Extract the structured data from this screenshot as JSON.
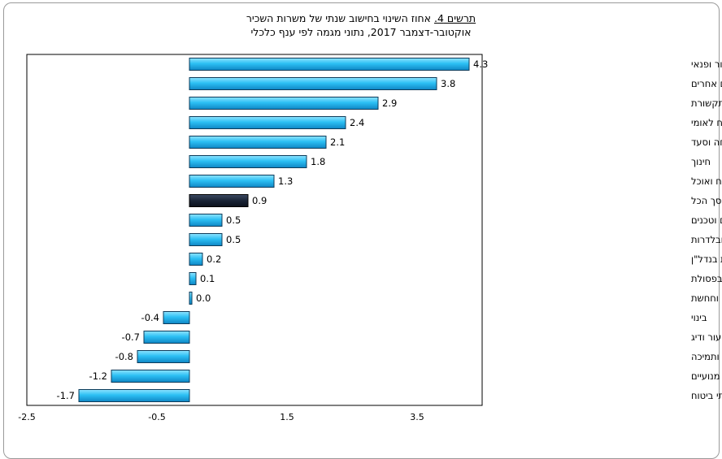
{
  "chart_data": {
    "type": "bar",
    "orientation": "horizontal",
    "title_prefix": "תרשים 4.",
    "title": "אחוז השינוי בחישוב שנתי של משרות השכיר",
    "subtitle": "אוקטובר-דצמבר 2017, נתוני מגמה לפי ענף כלכלי",
    "categories": [
      "אמנות, בידור ופנאי",
      "שירותים אחרים",
      "מידע ותקשורת",
      "מינהל מקומי, ציבורי וביטחון וביטוח לאומי",
      "שירותי בריאות, רווחה וסעד",
      "חינוך",
      "שירותי אירוח ואוכל",
      "סך הכל",
      "שירותים מקצועיים, מדעיים וטכנים",
      "שירותי תחבורה, אחסנה, דואר ובלדרות",
      "פעילויות בנדל\"ן",
      "אספקת חשמל ומים, שירותי ביוב וטיהור וטיפול בפסולת",
      "תעשייה וחחשת",
      "בינוי",
      "חקלאות, ייעור ודיג",
      "שירותי ניהול ותמיכה",
      "מסחר סיטוני וקמעוני ותיקון כלי רכב מנועיים",
      "שירותים פיננסיים ושירותי ביטוח"
    ],
    "values": [
      4.3,
      3.8,
      2.9,
      2.4,
      2.1,
      1.8,
      1.3,
      0.9,
      0.5,
      0.5,
      0.2,
      0.1,
      0.0,
      -0.4,
      -0.7,
      -0.8,
      -1.2,
      -1.7
    ],
    "value_labels": [
      "4.3",
      "3.8",
      "2.9",
      "2.4",
      "2.1",
      "1.8",
      "1.3",
      "0.9",
      "0.5",
      "0.5",
      "0.2",
      "0.1",
      "0.0",
      "-0.4",
      "-0.7",
      "-0.8",
      "-1.2",
      "-1.7"
    ],
    "highlight_index": 7,
    "xlim": [
      -2.5,
      4.5
    ],
    "xticks": [
      -2.5,
      -0.5,
      1.5,
      3.5
    ],
    "xtick_labels": [
      "-2.5",
      "-0.5",
      "1.5",
      "3.5"
    ],
    "grid": false,
    "legend": "none",
    "colors": {
      "bar": "#29b8f0",
      "bar_edge": "#0d3b5a",
      "highlight": "#1a2436",
      "highlight_edge": "#000000"
    }
  }
}
